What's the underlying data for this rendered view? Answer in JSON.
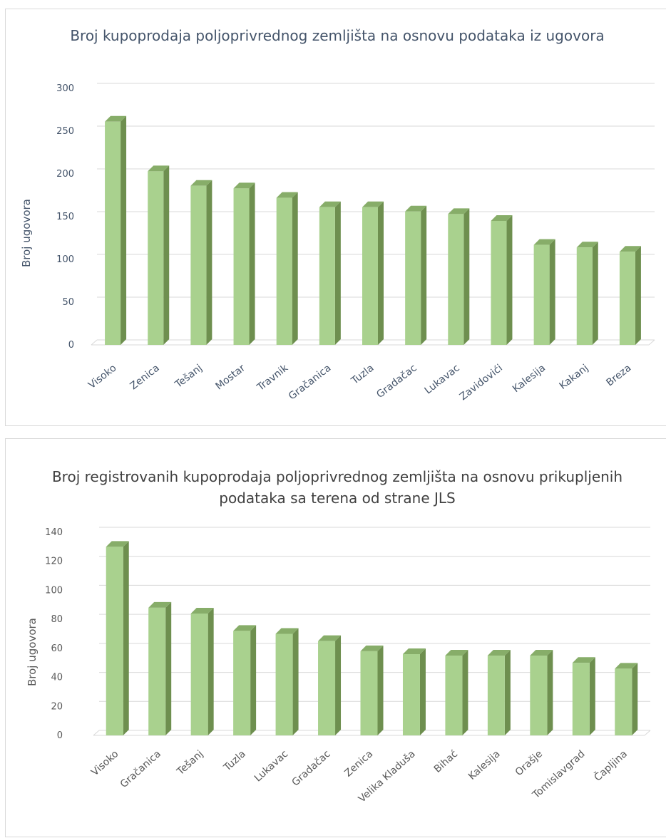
{
  "colors": {
    "bar_front": "#a9d18e",
    "bar_side": "#6e8f4f",
    "bar_top": "#87ad69",
    "gridline": "#d9d9d9",
    "text": "#44546a"
  },
  "chart_data": [
    {
      "type": "bar",
      "title": "Broj kupoprodaja poljoprivrednog zemljišta na osnovu podataka iz ugovora",
      "xlabel": "",
      "ylabel": "Broj ugovora",
      "ylim": [
        0,
        300
      ],
      "yticks": [
        "0",
        "50",
        "100",
        "150",
        "200",
        "250",
        "300"
      ],
      "grid": true,
      "legend": "none",
      "categories": [
        "Visoko",
        "Zenica",
        "Tešanj",
        "Mostar",
        "Travnik",
        "Gračanica",
        "Tuzla",
        "Gradačac",
        "Lukavac",
        "Zavidovići",
        "Kalesija",
        "Kakanj",
        "Breza"
      ],
      "values": [
        261,
        203,
        186,
        183,
        172,
        161,
        161,
        156,
        153,
        145,
        117,
        114,
        109
      ]
    },
    {
      "type": "bar",
      "title": "Broj registrovanih kupoprodaja poljoprivrednog zemljišta na osnovu prikupljenih podataka sa terena od strane JLS",
      "xlabel": "",
      "ylabel": "Broj ugovora",
      "ylim": [
        0,
        140
      ],
      "yticks": [
        "0",
        "20",
        "40",
        "60",
        "80",
        "100",
        "120",
        "140"
      ],
      "grid": true,
      "legend": "none",
      "categories": [
        "Visoko",
        "Gračanica",
        "Tešanj",
        "Tuzla",
        "Lukavac",
        "Gradačac",
        "Zenica",
        "Velika Kladuša",
        "Bihać",
        "Kalesija",
        "Orašje",
        "Tomislavgrad",
        "Čapljina"
      ],
      "values": [
        130,
        88,
        84,
        72,
        70,
        65,
        58,
        56,
        55,
        55,
        55,
        50,
        46
      ]
    }
  ]
}
